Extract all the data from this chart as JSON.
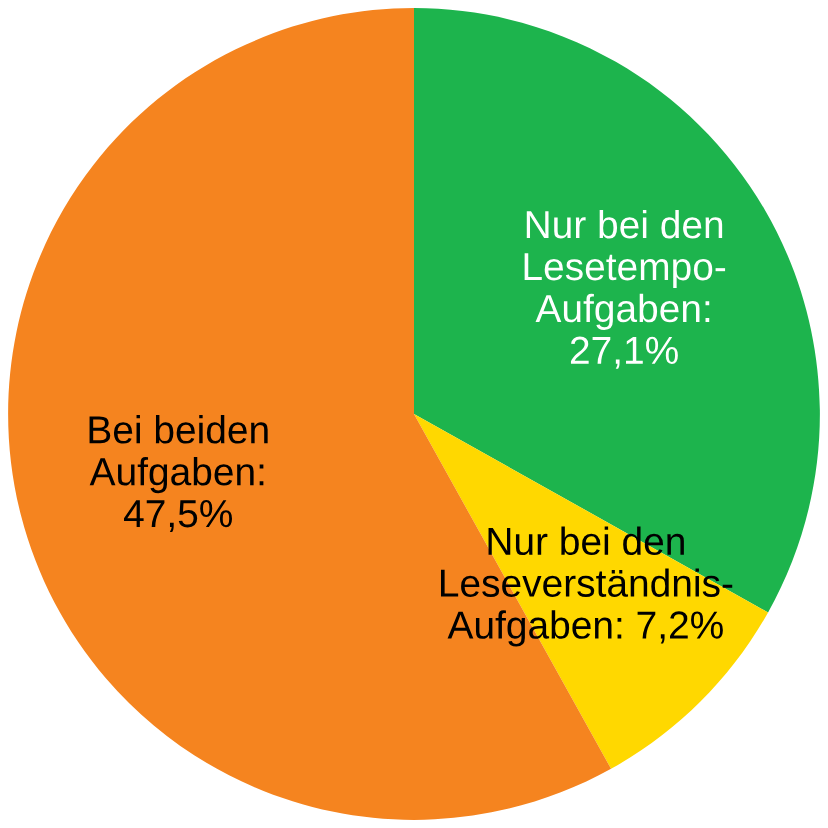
{
  "chart_data": {
    "type": "pie",
    "categories": [
      "Nur bei den\nLesetempo-\nAufgaben:\n27,1%",
      "Nur bei den\nLeseverständnis-\nAufgaben: 7,2%",
      "Bei beiden\nAufgaben:\n47,5%"
    ],
    "values": [
      27.1,
      7.2,
      47.5
    ],
    "colors": [
      "#1db44d",
      "#ffd800",
      "#f5841f"
    ]
  }
}
